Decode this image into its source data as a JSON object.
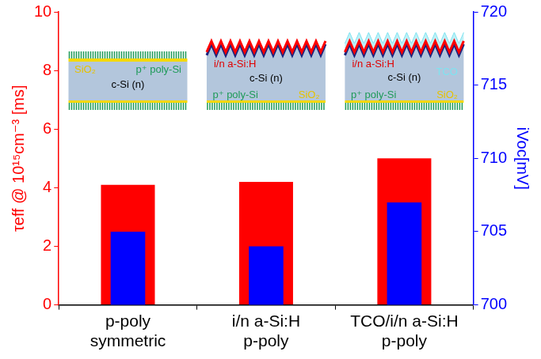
{
  "chart_data": {
    "type": "bar",
    "categories": [
      "p-poly\nsymmetric",
      "i/n a-Si:H\np-poly",
      "TCO/i/n a-Si:H\np-poly"
    ],
    "series": [
      {
        "values": [
          4.1,
          4.2,
          5.0
        ],
        "color": "#ff0000"
      },
      {
        "values": [
          705,
          704,
          707
        ],
        "color": "#0000ff",
        "axis": "y2"
      }
    ],
    "ylabel": "τeff @ 10¹⁵cm⁻³ [ms]",
    "y2label": "iVoc[mV]",
    "ylim": [
      0,
      10
    ],
    "yticks": [
      0,
      2,
      4,
      6,
      8,
      10
    ],
    "y2lim": [
      700,
      720
    ],
    "y2ticks": [
      700,
      705,
      710,
      715,
      720
    ],
    "grid": false,
    "annotations": [
      {
        "texts": [
          "SiO₂",
          "p⁺ poly-Si",
          "c-Si (n)"
        ]
      },
      {
        "texts": [
          "i/n a-Si:H",
          "c-Si (n)",
          "p⁺ poly-Si",
          "SiO₂"
        ]
      },
      {
        "texts": [
          "i/n a-Si:H",
          "c-Si (n)",
          "TCO",
          "p⁺ poly-Si",
          "SiO₂"
        ]
      }
    ]
  }
}
